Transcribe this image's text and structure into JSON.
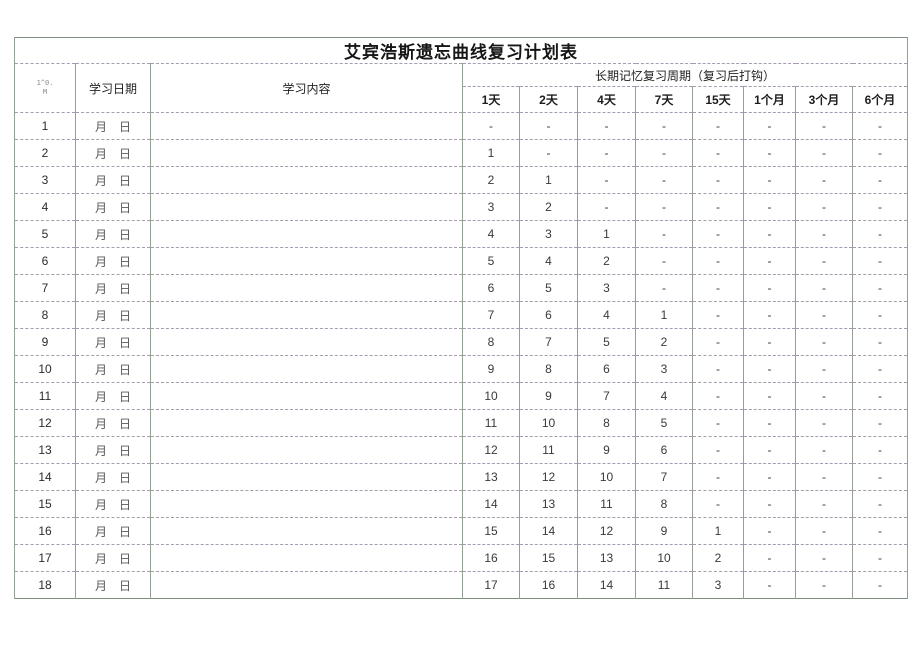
{
  "title": "艾宾浩斯遗忘曲线复习计划表",
  "headers": {
    "seq_line1": "1^0.",
    "seq_line2": "M",
    "date": "学习日期",
    "content": "学习内容",
    "review_group": "长期记忆复习周期（复习后打钩）",
    "days": [
      "1天",
      "2天",
      "4天",
      "7天",
      "15天",
      "1个月",
      "3个月",
      "6个月"
    ]
  },
  "colors": {
    "border_vertical": "#93a093",
    "border_horizontal": "#a79bae",
    "title_text": "#161616",
    "body_text": "#3a3a3a"
  },
  "rows": [
    {
      "no": "1",
      "date": "月　日",
      "content": "",
      "reviews": [
        "-",
        "-",
        "-",
        "-",
        "-",
        "-",
        "-",
        "-"
      ]
    },
    {
      "no": "2",
      "date": "月　日",
      "content": "",
      "reviews": [
        "1",
        "-",
        "-",
        "-",
        "-",
        "-",
        "-",
        "-"
      ]
    },
    {
      "no": "3",
      "date": "月　日",
      "content": "",
      "reviews": [
        "2",
        "1",
        "-",
        "-",
        "-",
        "-",
        "-",
        "-"
      ]
    },
    {
      "no": "4",
      "date": "月　日",
      "content": "",
      "reviews": [
        "3",
        "2",
        "-",
        "-",
        "-",
        "-",
        "-",
        "-"
      ]
    },
    {
      "no": "5",
      "date": "月　日",
      "content": "",
      "reviews": [
        "4",
        "3",
        "1",
        "-",
        "-",
        "-",
        "-",
        "-"
      ]
    },
    {
      "no": "6",
      "date": "月　日",
      "content": "",
      "reviews": [
        "5",
        "4",
        "2",
        "-",
        "-",
        "-",
        "-",
        "-"
      ]
    },
    {
      "no": "7",
      "date": "月　日",
      "content": "",
      "reviews": [
        "6",
        "5",
        "3",
        "-",
        "-",
        "-",
        "-",
        "-"
      ]
    },
    {
      "no": "8",
      "date": "月　日",
      "content": "",
      "reviews": [
        "7",
        "6",
        "4",
        "1",
        "-",
        "-",
        "-",
        "-"
      ]
    },
    {
      "no": "9",
      "date": "月　日",
      "content": "",
      "reviews": [
        "8",
        "7",
        "5",
        "2",
        "-",
        "-",
        "-",
        "-"
      ]
    },
    {
      "no": "10",
      "date": "月　日",
      "content": "",
      "reviews": [
        "9",
        "8",
        "6",
        "3",
        "-",
        "-",
        "-",
        "-"
      ]
    },
    {
      "no": "11",
      "date": "月　日",
      "content": "",
      "reviews": [
        "10",
        "9",
        "7",
        "4",
        "-",
        "-",
        "-",
        "-"
      ]
    },
    {
      "no": "12",
      "date": "月　日",
      "content": "",
      "reviews": [
        "11",
        "10",
        "8",
        "5",
        "-",
        "-",
        "-",
        "-"
      ]
    },
    {
      "no": "13",
      "date": "月　日",
      "content": "",
      "reviews": [
        "12",
        "11",
        "9",
        "6",
        "-",
        "-",
        "-",
        "-"
      ]
    },
    {
      "no": "14",
      "date": "月　日",
      "content": "",
      "reviews": [
        "13",
        "12",
        "10",
        "7",
        "-",
        "-",
        "-",
        "-"
      ]
    },
    {
      "no": "15",
      "date": "月　日",
      "content": "",
      "reviews": [
        "14",
        "13",
        "11",
        "8",
        "-",
        "-",
        "-",
        "-"
      ]
    },
    {
      "no": "16",
      "date": "月　日",
      "content": "",
      "reviews": [
        "15",
        "14",
        "12",
        "9",
        "1",
        "-",
        "-",
        "-"
      ]
    },
    {
      "no": "17",
      "date": "月　日",
      "content": "",
      "reviews": [
        "16",
        "15",
        "13",
        "10",
        "2",
        "-",
        "-",
        "-"
      ]
    },
    {
      "no": "18",
      "date": "月　日",
      "content": "",
      "reviews": [
        "17",
        "16",
        "14",
        "11",
        "3",
        "-",
        "-",
        "-"
      ]
    }
  ]
}
